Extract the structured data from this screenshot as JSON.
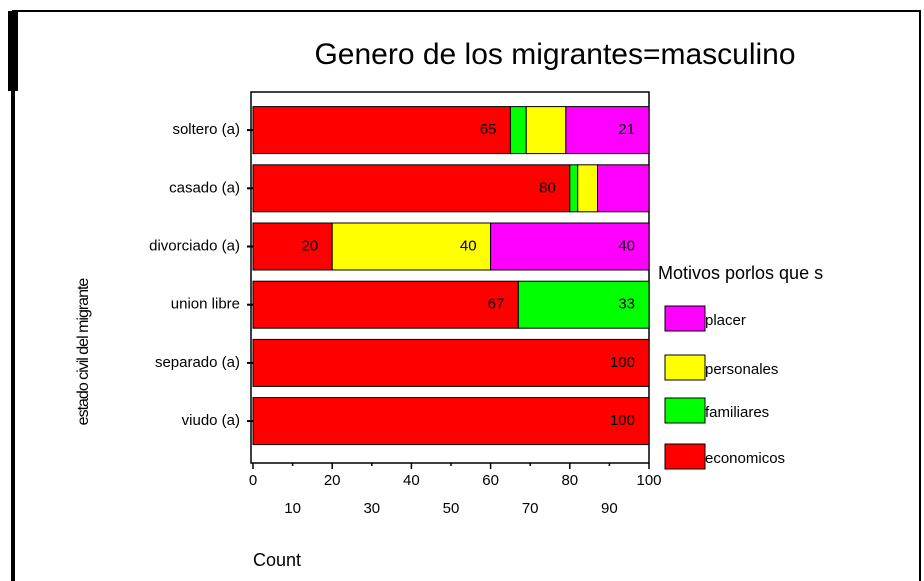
{
  "chart_data": {
    "type": "stacked_barh",
    "title": "Genero de los migrantes=masculino",
    "xlabel": "Count",
    "ylabel": "estado civil del migrante",
    "legend_title": "Motivos porlos que s",
    "categories": [
      "soltero (a)",
      "casado (a)",
      "divorciado (a)",
      "union libre",
      "separado (a)",
      "viudo (a)"
    ],
    "series": [
      {
        "name": "economicos",
        "color": "#ff0000",
        "values": [
          65,
          80,
          20,
          67,
          100,
          100
        ],
        "value_labels": [
          "65",
          "80",
          "20",
          "67",
          "100",
          "100"
        ]
      },
      {
        "name": "familiares",
        "color": "#00ff00",
        "values": [
          4,
          2,
          0,
          33,
          0,
          0
        ],
        "value_labels": [
          null,
          null,
          null,
          "33",
          null,
          null
        ]
      },
      {
        "name": "personales",
        "color": "#ffff00",
        "values": [
          10,
          5,
          40,
          0,
          0,
          0
        ],
        "value_labels": [
          null,
          null,
          "40",
          null,
          null,
          null
        ]
      },
      {
        "name": "placer",
        "color": "#ff00ff",
        "values": [
          21,
          13,
          40,
          0,
          0,
          0
        ],
        "value_labels": [
          "21",
          null,
          "40",
          null,
          null,
          null
        ]
      }
    ],
    "xlim": [
      0,
      100
    ],
    "xticks": [
      0,
      10,
      20,
      30,
      40,
      50,
      60,
      70,
      80,
      90,
      100
    ]
  }
}
